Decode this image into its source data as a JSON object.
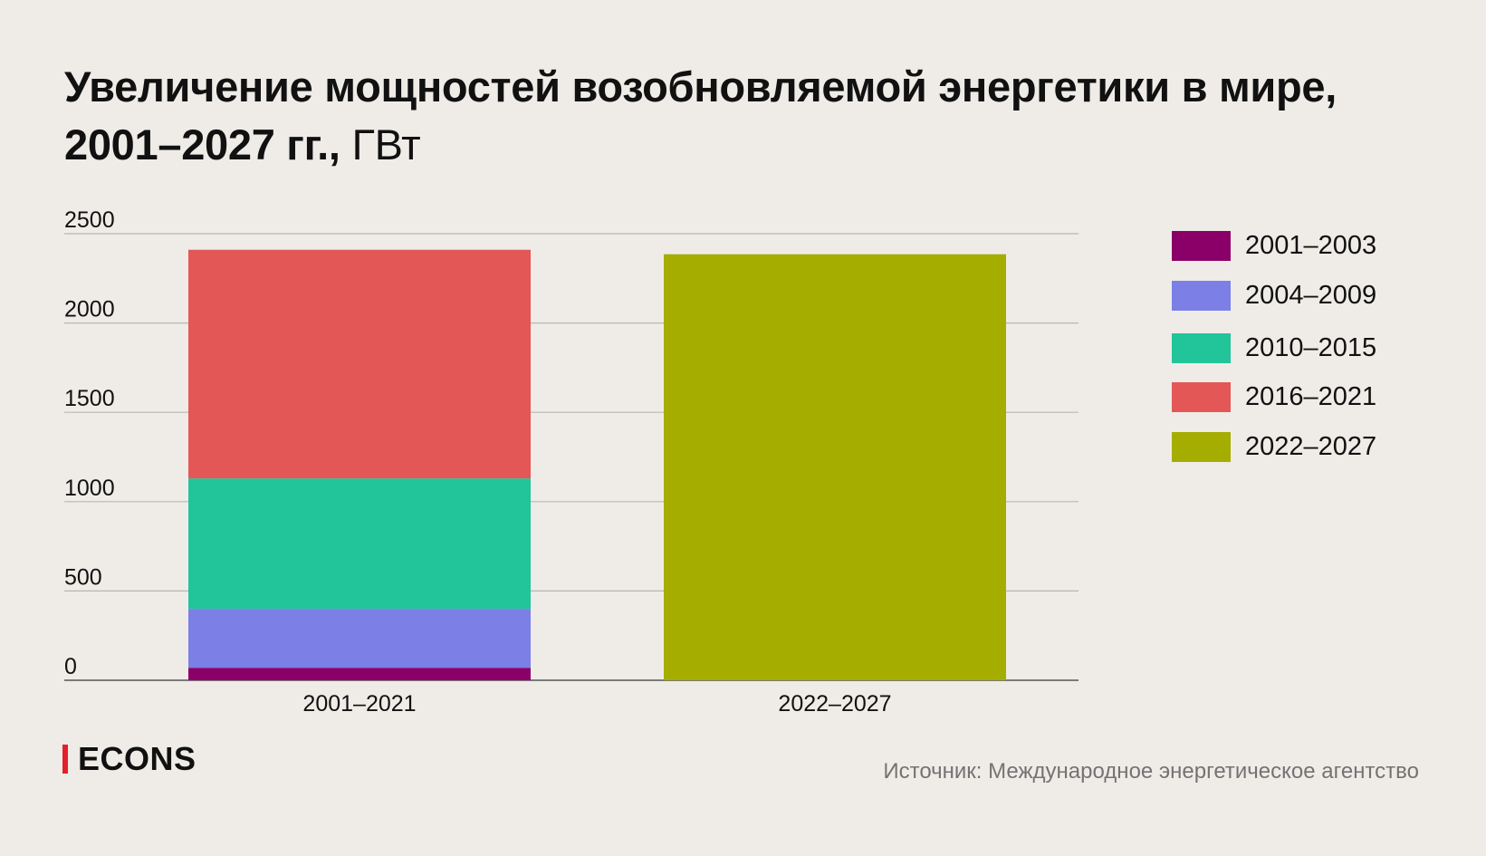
{
  "title": {
    "main": "Увеличение мощностей возобновляемой энергетики в мире, 2001–2027 гг.,",
    "unit": "ГВт"
  },
  "chart_data": {
    "type": "bar",
    "stacked": true,
    "title": "Увеличение мощностей возобновляемой энергетики в мире, 2001–2027 гг., ГВт",
    "categories": [
      "2001–2021",
      "2022–2027"
    ],
    "series": [
      {
        "name": "2001–2003",
        "color": "#8b0068",
        "values": [
          70,
          0
        ]
      },
      {
        "name": "2004–2009",
        "color": "#7b7fe6",
        "values": [
          330,
          0
        ]
      },
      {
        "name": "2010–2015",
        "color": "#22c49a",
        "values": [
          730,
          0
        ]
      },
      {
        "name": "2016–2021",
        "color": "#e35757",
        "values": [
          1280,
          0
        ]
      },
      {
        "name": "2022–2027",
        "color": "#a4ad00",
        "values": [
          0,
          2385
        ]
      }
    ],
    "yticks": [
      "0",
      "500",
      "1000",
      "1500",
      "2000",
      "2500"
    ],
    "ylim": [
      0,
      2500
    ],
    "grid": true,
    "legend_position": "right"
  },
  "legend": {
    "items": [
      {
        "label": "2001–2003",
        "color": "#8b0068"
      },
      {
        "label": "2004–2009",
        "color": "#7b7fe6"
      },
      {
        "label": "2010–2015",
        "color": "#22c49a"
      },
      {
        "label": "2016–2021",
        "color": "#e35757"
      },
      {
        "label": "2022–2027",
        "color": "#a4ad00"
      }
    ]
  },
  "logo": {
    "text": "ECONS",
    "accent_color": "#e4202a"
  },
  "source": "Источник: Международное энергетическое агентство"
}
